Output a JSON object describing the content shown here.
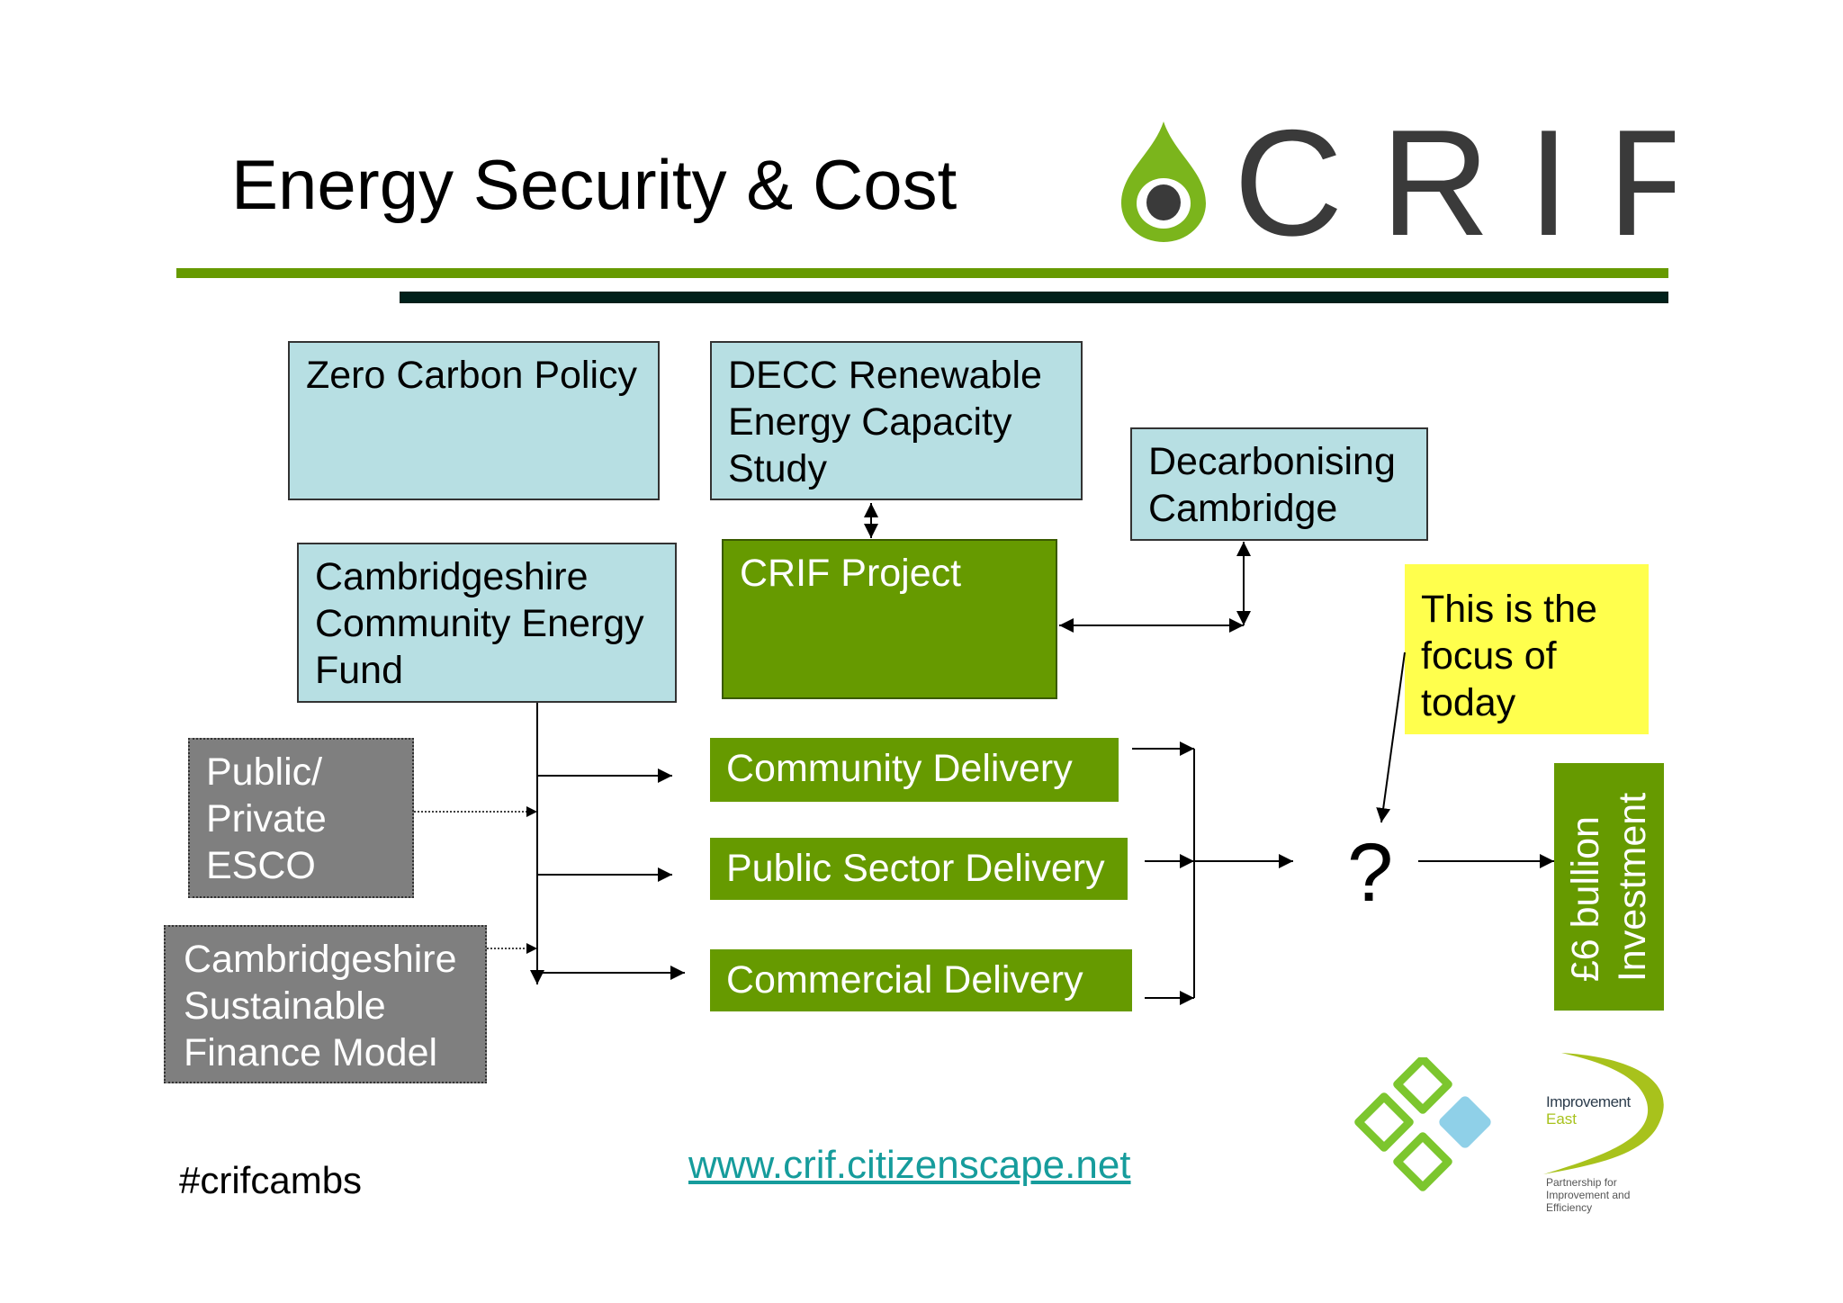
{
  "header": {
    "title": "Energy Security & Cost",
    "logo_text": "CRIF"
  },
  "boxes": {
    "zero_carbon": "Zero Carbon Policy",
    "decc": [
      "DECC Renewable",
      "Energy Capacity",
      "Study"
    ],
    "decarbonising": [
      "Decarbonising",
      "Cambridge"
    ],
    "ccef": [
      "Cambridgeshire",
      "Community Energy",
      "Fund"
    ],
    "crif_project": "CRIF Project",
    "esco": [
      "Public/",
      "Private",
      "ESCO"
    ],
    "csfm": [
      "Cambridgeshire",
      "Sustainable",
      "Finance Model"
    ],
    "community": "Community Delivery",
    "public_sector": "Public Sector Delivery",
    "commercial": "Commercial Delivery",
    "focus": [
      "This is the",
      "focus of",
      "today"
    ],
    "question": "?",
    "investment": [
      "£6 bullion",
      "Investment"
    ]
  },
  "footer": {
    "hashtag": "#crifcambs",
    "url": "www.crif.citizenscape.net",
    "partner_logo": {
      "title": "Improvement",
      "subtitle": "East",
      "tagline": "Partnership for Improvement and Efficiency"
    }
  },
  "colors": {
    "green": "#669a00",
    "dark": "#00201a",
    "light_blue": "#b7dfe3",
    "gray": "#7f7f7f",
    "yellow": "#ffff4d",
    "link": "#169c9c"
  }
}
